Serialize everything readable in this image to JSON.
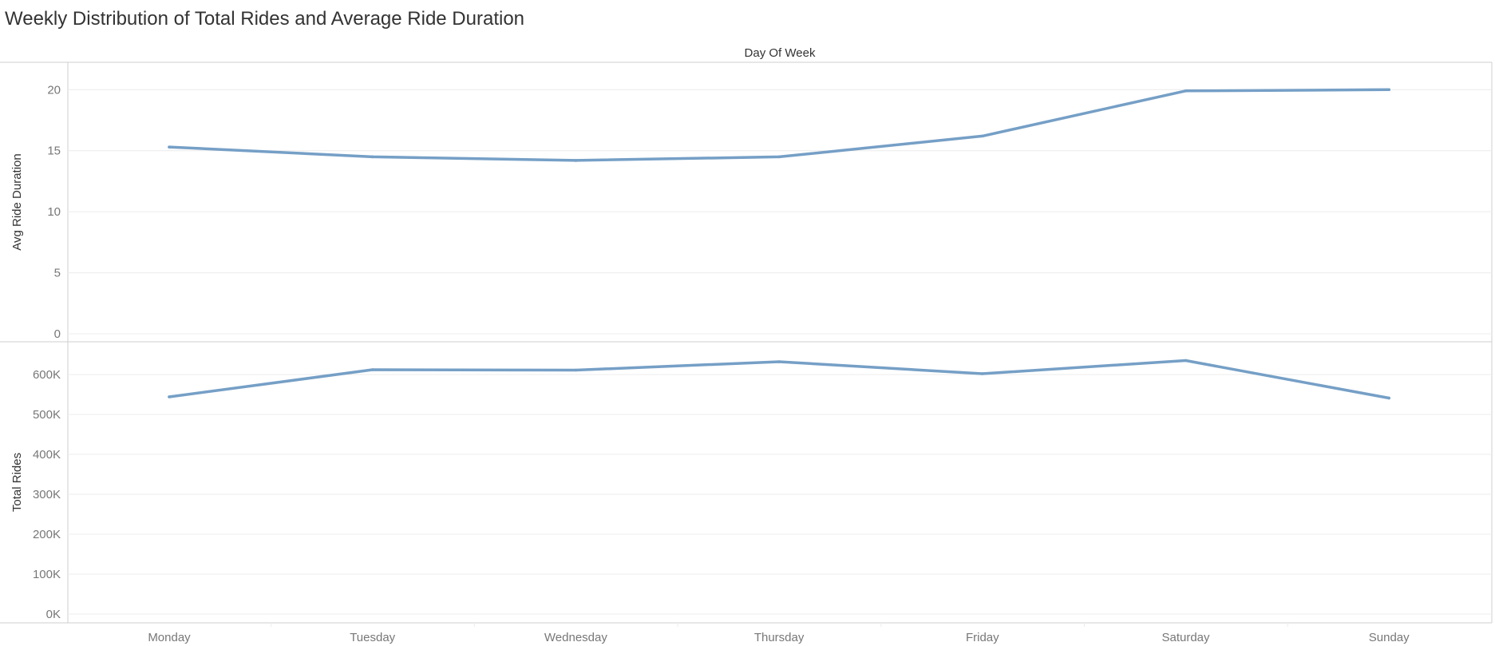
{
  "title": "Weekly Distribution of Total Rides and Average Ride Duration",
  "colors": {
    "line": "#759fc6",
    "grid": "#ececec",
    "border": "#cfcfcf",
    "tick_text": "#777777",
    "axis_text": "#333333"
  },
  "chart_data": {
    "type": "line",
    "title": "Weekly Distribution of Total Rides and Average Ride Duration",
    "xlabel": "Day Of Week",
    "categories": [
      "Monday",
      "Tuesday",
      "Wednesday",
      "Thursday",
      "Friday",
      "Saturday",
      "Sunday"
    ],
    "panels": [
      {
        "ylabel": "Avg Ride Duration",
        "ylim": [
          0,
          21
        ],
        "yticks": [
          0,
          5,
          10,
          15,
          20
        ],
        "ytick_labels": [
          "0",
          "5",
          "10",
          "15",
          "20"
        ],
        "values": [
          15.3,
          14.5,
          14.2,
          14.5,
          16.2,
          19.9,
          20.0
        ]
      },
      {
        "ylabel": "Total Rides",
        "ylim": [
          0,
          670000
        ],
        "yticks": [
          0,
          100000,
          200000,
          300000,
          400000,
          500000,
          600000
        ],
        "ytick_labels": [
          "0K",
          "100K",
          "200K",
          "300K",
          "400K",
          "500K",
          "600K"
        ],
        "values": [
          544000,
          612000,
          611000,
          632000,
          602000,
          635000,
          541000
        ]
      }
    ],
    "grid": true,
    "legend": "none"
  }
}
